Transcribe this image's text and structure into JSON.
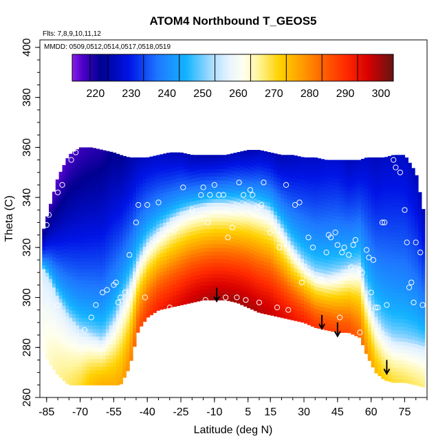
{
  "chart_data": {
    "type": "heatmap",
    "title": "ATOM4 Northbound T_GEOS5",
    "xlabel": "Latitude (deg N)",
    "ylabel": "Theta (C)",
    "annotations": {
      "flights": "Flts: 7,8,9,10,11,12",
      "dates": "MMDD: 0509,0512,0514,0517,0518,0519"
    },
    "xlim": [
      -88,
      85
    ],
    "ylim": [
      260,
      403
    ],
    "x_ticks": [
      -85,
      -70,
      -55,
      -40,
      -25,
      -10,
      5,
      15,
      30,
      45,
      60,
      75
    ],
    "y_ticks": [
      260,
      280,
      300,
      320,
      340,
      360,
      380,
      400
    ],
    "colorbar": {
      "min": 210,
      "max": 300,
      "ticks": [
        220,
        230,
        240,
        250,
        260,
        270,
        280,
        290,
        300
      ],
      "stops": [
        {
          "v": 210,
          "color": "#8c1ee8"
        },
        {
          "v": 213,
          "color": "#4b00c8"
        },
        {
          "v": 218,
          "color": "#000090"
        },
        {
          "v": 226,
          "color": "#0014e6"
        },
        {
          "v": 234,
          "color": "#1e78ff"
        },
        {
          "v": 242,
          "color": "#14b4ff"
        },
        {
          "v": 249,
          "color": "#a8dcff"
        },
        {
          "v": 254,
          "color": "#e8f4ff"
        },
        {
          "v": 258,
          "color": "#fffff0"
        },
        {
          "v": 262,
          "color": "#fff5a0"
        },
        {
          "v": 268,
          "color": "#ffd200"
        },
        {
          "v": 274,
          "color": "#ffa000"
        },
        {
          "v": 280,
          "color": "#ff6400"
        },
        {
          "v": 287,
          "color": "#ff2800"
        },
        {
          "v": 293,
          "color": "#d70000"
        },
        {
          "v": 300,
          "color": "#641414"
        }
      ]
    },
    "field": {
      "lats": [
        -87,
        -84,
        -80,
        -75,
        -70,
        -65,
        -60,
        -55,
        -52,
        -48,
        -44,
        -40,
        -35,
        -30,
        -25,
        -20,
        -15,
        -10,
        -5,
        0,
        5,
        10,
        15,
        20,
        25,
        30,
        35,
        40,
        45,
        50,
        55,
        58,
        62,
        66,
        70,
        75,
        80,
        84
      ],
      "lower_theta": [
        280,
        274,
        269,
        265,
        265,
        265,
        265,
        265,
        265,
        272,
        287,
        292,
        295,
        296,
        297,
        298,
        299,
        299,
        299,
        298,
        296,
        294,
        293,
        292,
        291,
        290,
        288,
        287,
        286,
        286,
        284,
        277,
        270,
        267,
        266,
        266,
        265,
        264
      ],
      "upper_theta": [
        325,
        335,
        348,
        357,
        360,
        360,
        359,
        358,
        357,
        356,
        356,
        356,
        357,
        358,
        358,
        357,
        357,
        357,
        357,
        358,
        359,
        359,
        358,
        357,
        357,
        356,
        356,
        355,
        355,
        355,
        355,
        356,
        356,
        356,
        357,
        357,
        350,
        332
      ],
      "trop_theta": [
        312,
        308,
        300,
        292,
        287,
        285,
        283,
        290,
        297,
        305,
        315,
        322,
        327,
        331,
        334,
        336,
        337,
        338,
        338,
        338,
        338,
        337,
        335,
        328,
        320,
        314,
        310,
        309,
        310,
        312,
        313,
        302,
        292,
        286,
        283,
        282,
        281,
        280
      ],
      "surface_T": [
        258,
        260,
        262,
        264,
        266,
        270,
        272,
        272,
        273,
        276,
        282,
        285,
        288,
        290,
        292,
        294,
        295,
        296,
        296,
        296,
        296,
        295,
        294,
        292,
        290,
        288,
        286,
        285,
        284,
        283,
        280,
        276,
        271,
        268,
        266,
        265,
        264,
        263
      ],
      "top_T": [
        217,
        214,
        212,
        213,
        214,
        215,
        216,
        218,
        218,
        220,
        222,
        223,
        223,
        222,
        222,
        221,
        221,
        221,
        222,
        222,
        221,
        222,
        222,
        221,
        222,
        223,
        223,
        224,
        224,
        222,
        223,
        223,
        222,
        223,
        223,
        223,
        222,
        222
      ]
    },
    "obs_points": [
      [
        -87,
        294
      ],
      [
        -86,
        280
      ],
      [
        -85,
        329
      ],
      [
        -84,
        333
      ],
      [
        -82,
        289
      ],
      [
        -80,
        297
      ],
      [
        -78,
        345
      ],
      [
        -80,
        342
      ],
      [
        -74,
        355
      ],
      [
        -72,
        358
      ],
      [
        -71,
        362
      ],
      [
        -60,
        302
      ],
      [
        -55,
        305
      ],
      [
        -54,
        306
      ],
      [
        -53,
        298
      ],
      [
        -52,
        300
      ],
      [
        -50,
        302
      ],
      [
        -48,
        317
      ],
      [
        -45,
        330
      ],
      [
        -44,
        337
      ],
      [
        -40,
        337
      ],
      [
        -35,
        338
      ],
      [
        -28,
        327
      ],
      [
        -24,
        344
      ],
      [
        -20,
        335
      ],
      [
        -16,
        341
      ],
      [
        -15,
        344
      ],
      [
        -13,
        330
      ],
      [
        -12,
        341
      ],
      [
        -10,
        345
      ],
      [
        -8,
        341
      ],
      [
        -6,
        341
      ],
      [
        -4,
        324
      ],
      [
        -2,
        328
      ],
      [
        1,
        346
      ],
      [
        3,
        341
      ],
      [
        6,
        343
      ],
      [
        7,
        341
      ],
      [
        9,
        336
      ],
      [
        11,
        337
      ],
      [
        12,
        346
      ],
      [
        15,
        326
      ],
      [
        19,
        320
      ],
      [
        22,
        345
      ],
      [
        26,
        337
      ],
      [
        28,
        338
      ],
      [
        32,
        324
      ],
      [
        34,
        320
      ],
      [
        37,
        307
      ],
      [
        40,
        318
      ],
      [
        41,
        325
      ],
      [
        42,
        324
      ],
      [
        44,
        326
      ],
      [
        45,
        321
      ],
      [
        47,
        318
      ],
      [
        48,
        320
      ],
      [
        50,
        317
      ],
      [
        51,
        312
      ],
      [
        52,
        321
      ],
      [
        53,
        323
      ],
      [
        55,
        311
      ],
      [
        56,
        310
      ],
      [
        58,
        319
      ],
      [
        59,
        316
      ],
      [
        60,
        302
      ],
      [
        61,
        315
      ],
      [
        62,
        296
      ],
      [
        63,
        296
      ],
      [
        65,
        330
      ],
      [
        66,
        330
      ],
      [
        67,
        297
      ],
      [
        70,
        355
      ],
      [
        71,
        352
      ],
      [
        73,
        350
      ],
      [
        75,
        335
      ],
      [
        76,
        322
      ],
      [
        77,
        304
      ],
      [
        78,
        306
      ],
      [
        79,
        298
      ],
      [
        80,
        322
      ],
      [
        82,
        318
      ],
      [
        83,
        297
      ],
      [
        -30,
        296
      ],
      [
        -22,
        296
      ],
      [
        -14,
        299
      ],
      [
        -5,
        300
      ],
      [
        0,
        300
      ],
      [
        4,
        299
      ],
      [
        10,
        298
      ],
      [
        18,
        296
      ],
      [
        23,
        295
      ],
      [
        29,
        306
      ],
      [
        38,
        307
      ],
      [
        46,
        292
      ],
      [
        55,
        286
      ],
      [
        -63,
        297
      ],
      [
        -58,
        303
      ],
      [
        -41,
        300
      ],
      [
        -36,
        289
      ],
      [
        -33,
        292
      ],
      [
        -31,
        292
      ],
      [
        -68,
        287
      ],
      [
        -65,
        292
      ]
    ],
    "arrows": [
      {
        "lat": -9,
        "theta": 304
      },
      {
        "lat": 38,
        "theta": 293
      },
      {
        "lat": 45,
        "theta": 290
      },
      {
        "lat": 67,
        "theta": 275
      }
    ]
  }
}
